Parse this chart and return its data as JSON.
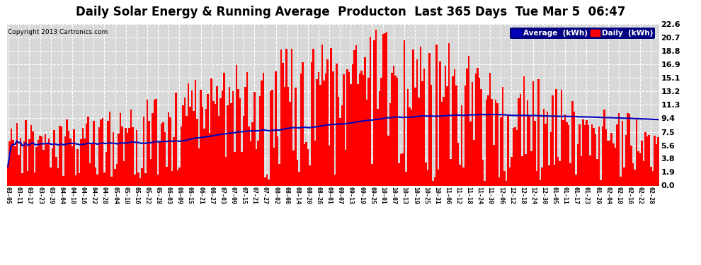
{
  "title": "Daily Solar Energy & Running Average  Producton  Last 365 Days  Tue Mar 5  06:47",
  "copyright": "Copyright 2013 Cartronics.com",
  "legend_avg": "Average  (kWh)",
  "legend_daily": "Daily  (kWh)",
  "yticks": [
    0.0,
    1.9,
    3.8,
    5.6,
    7.5,
    9.4,
    11.3,
    13.2,
    15.1,
    16.9,
    18.8,
    20.7,
    22.6
  ],
  "ylim": [
    0.0,
    22.6
  ],
  "bar_color": "#ff0000",
  "avg_line_color": "#0000bb",
  "bg_color": "#ffffff",
  "plot_bg_color": "#d8d8d8",
  "grid_color": "#ffffff",
  "grid_style": "--",
  "title_fontsize": 12,
  "num_bars": 365,
  "xlabel_rotation": -90,
  "x_labels": [
    "03-05",
    "03-11",
    "03-17",
    "03-23",
    "03-29",
    "04-04",
    "04-10",
    "04-16",
    "04-22",
    "04-28",
    "05-04",
    "05-10",
    "05-16",
    "05-22",
    "05-28",
    "06-03",
    "06-09",
    "06-15",
    "06-21",
    "06-27",
    "07-03",
    "07-09",
    "07-15",
    "07-21",
    "07-27",
    "08-02",
    "08-08",
    "08-14",
    "08-20",
    "08-26",
    "09-01",
    "09-07",
    "09-13",
    "09-19",
    "09-25",
    "10-01",
    "10-07",
    "10-13",
    "10-19",
    "10-25",
    "10-31",
    "11-06",
    "11-12",
    "11-18",
    "11-24",
    "11-30",
    "12-06",
    "12-12",
    "12-18",
    "12-24",
    "12-30",
    "01-05",
    "01-11",
    "01-17",
    "01-23",
    "01-29",
    "02-04",
    "02-10",
    "02-16",
    "02-22",
    "02-28"
  ]
}
